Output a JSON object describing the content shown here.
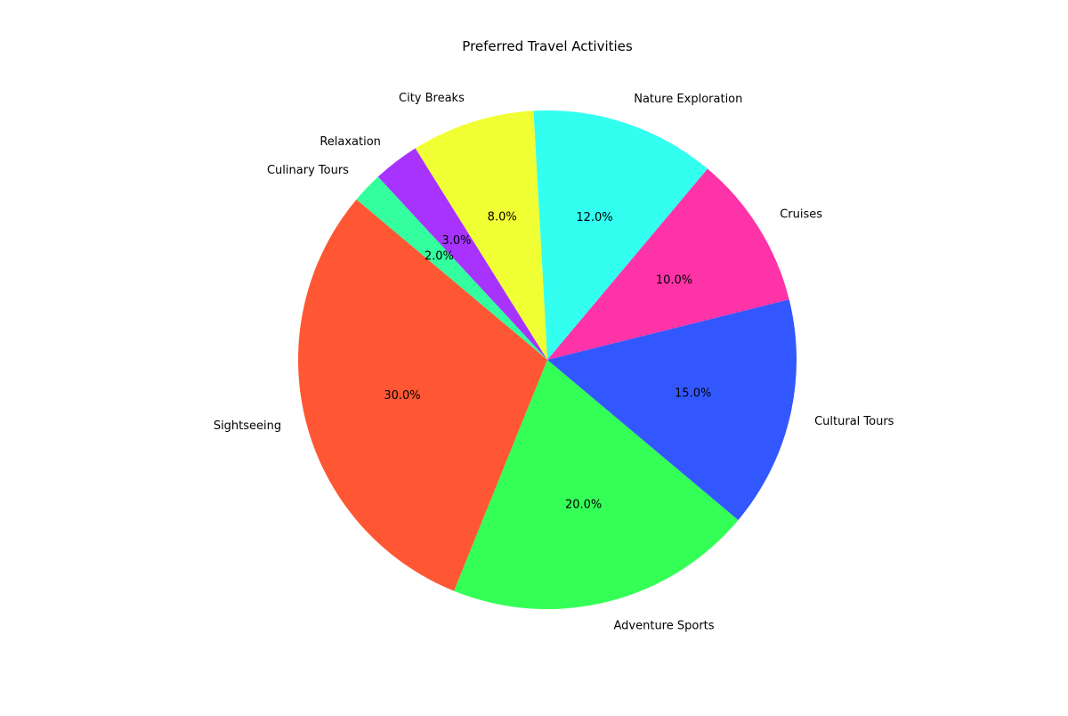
{
  "chart_data": {
    "type": "pie",
    "title": "Preferred Travel Activities",
    "slices": [
      {
        "label": "Sightseeing",
        "value": 30.0,
        "pct_label": "30.0%",
        "color": "#FF5733"
      },
      {
        "label": "Adventure Sports",
        "value": 20.0,
        "pct_label": "20.0%",
        "color": "#33FF57"
      },
      {
        "label": "Cultural Tours",
        "value": 15.0,
        "pct_label": "15.0%",
        "color": "#3357FF"
      },
      {
        "label": "Cruises",
        "value": 10.0,
        "pct_label": "10.0%",
        "color": "#FF33A8"
      },
      {
        "label": "Nature Exploration",
        "value": 12.0,
        "pct_label": "12.0%",
        "color": "#33FFF0"
      },
      {
        "label": "City Breaks",
        "value": 8.0,
        "pct_label": "8.0%",
        "color": "#F0FF33"
      },
      {
        "label": "Relaxation",
        "value": 3.0,
        "pct_label": "3.0%",
        "color": "#A833FF"
      },
      {
        "label": "Culinary Tours",
        "value": 2.0,
        "pct_label": "2.0%",
        "color": "#33FF9E"
      }
    ],
    "start_angle_deg": 140,
    "direction": "counterclockwise",
    "legend": "none"
  }
}
